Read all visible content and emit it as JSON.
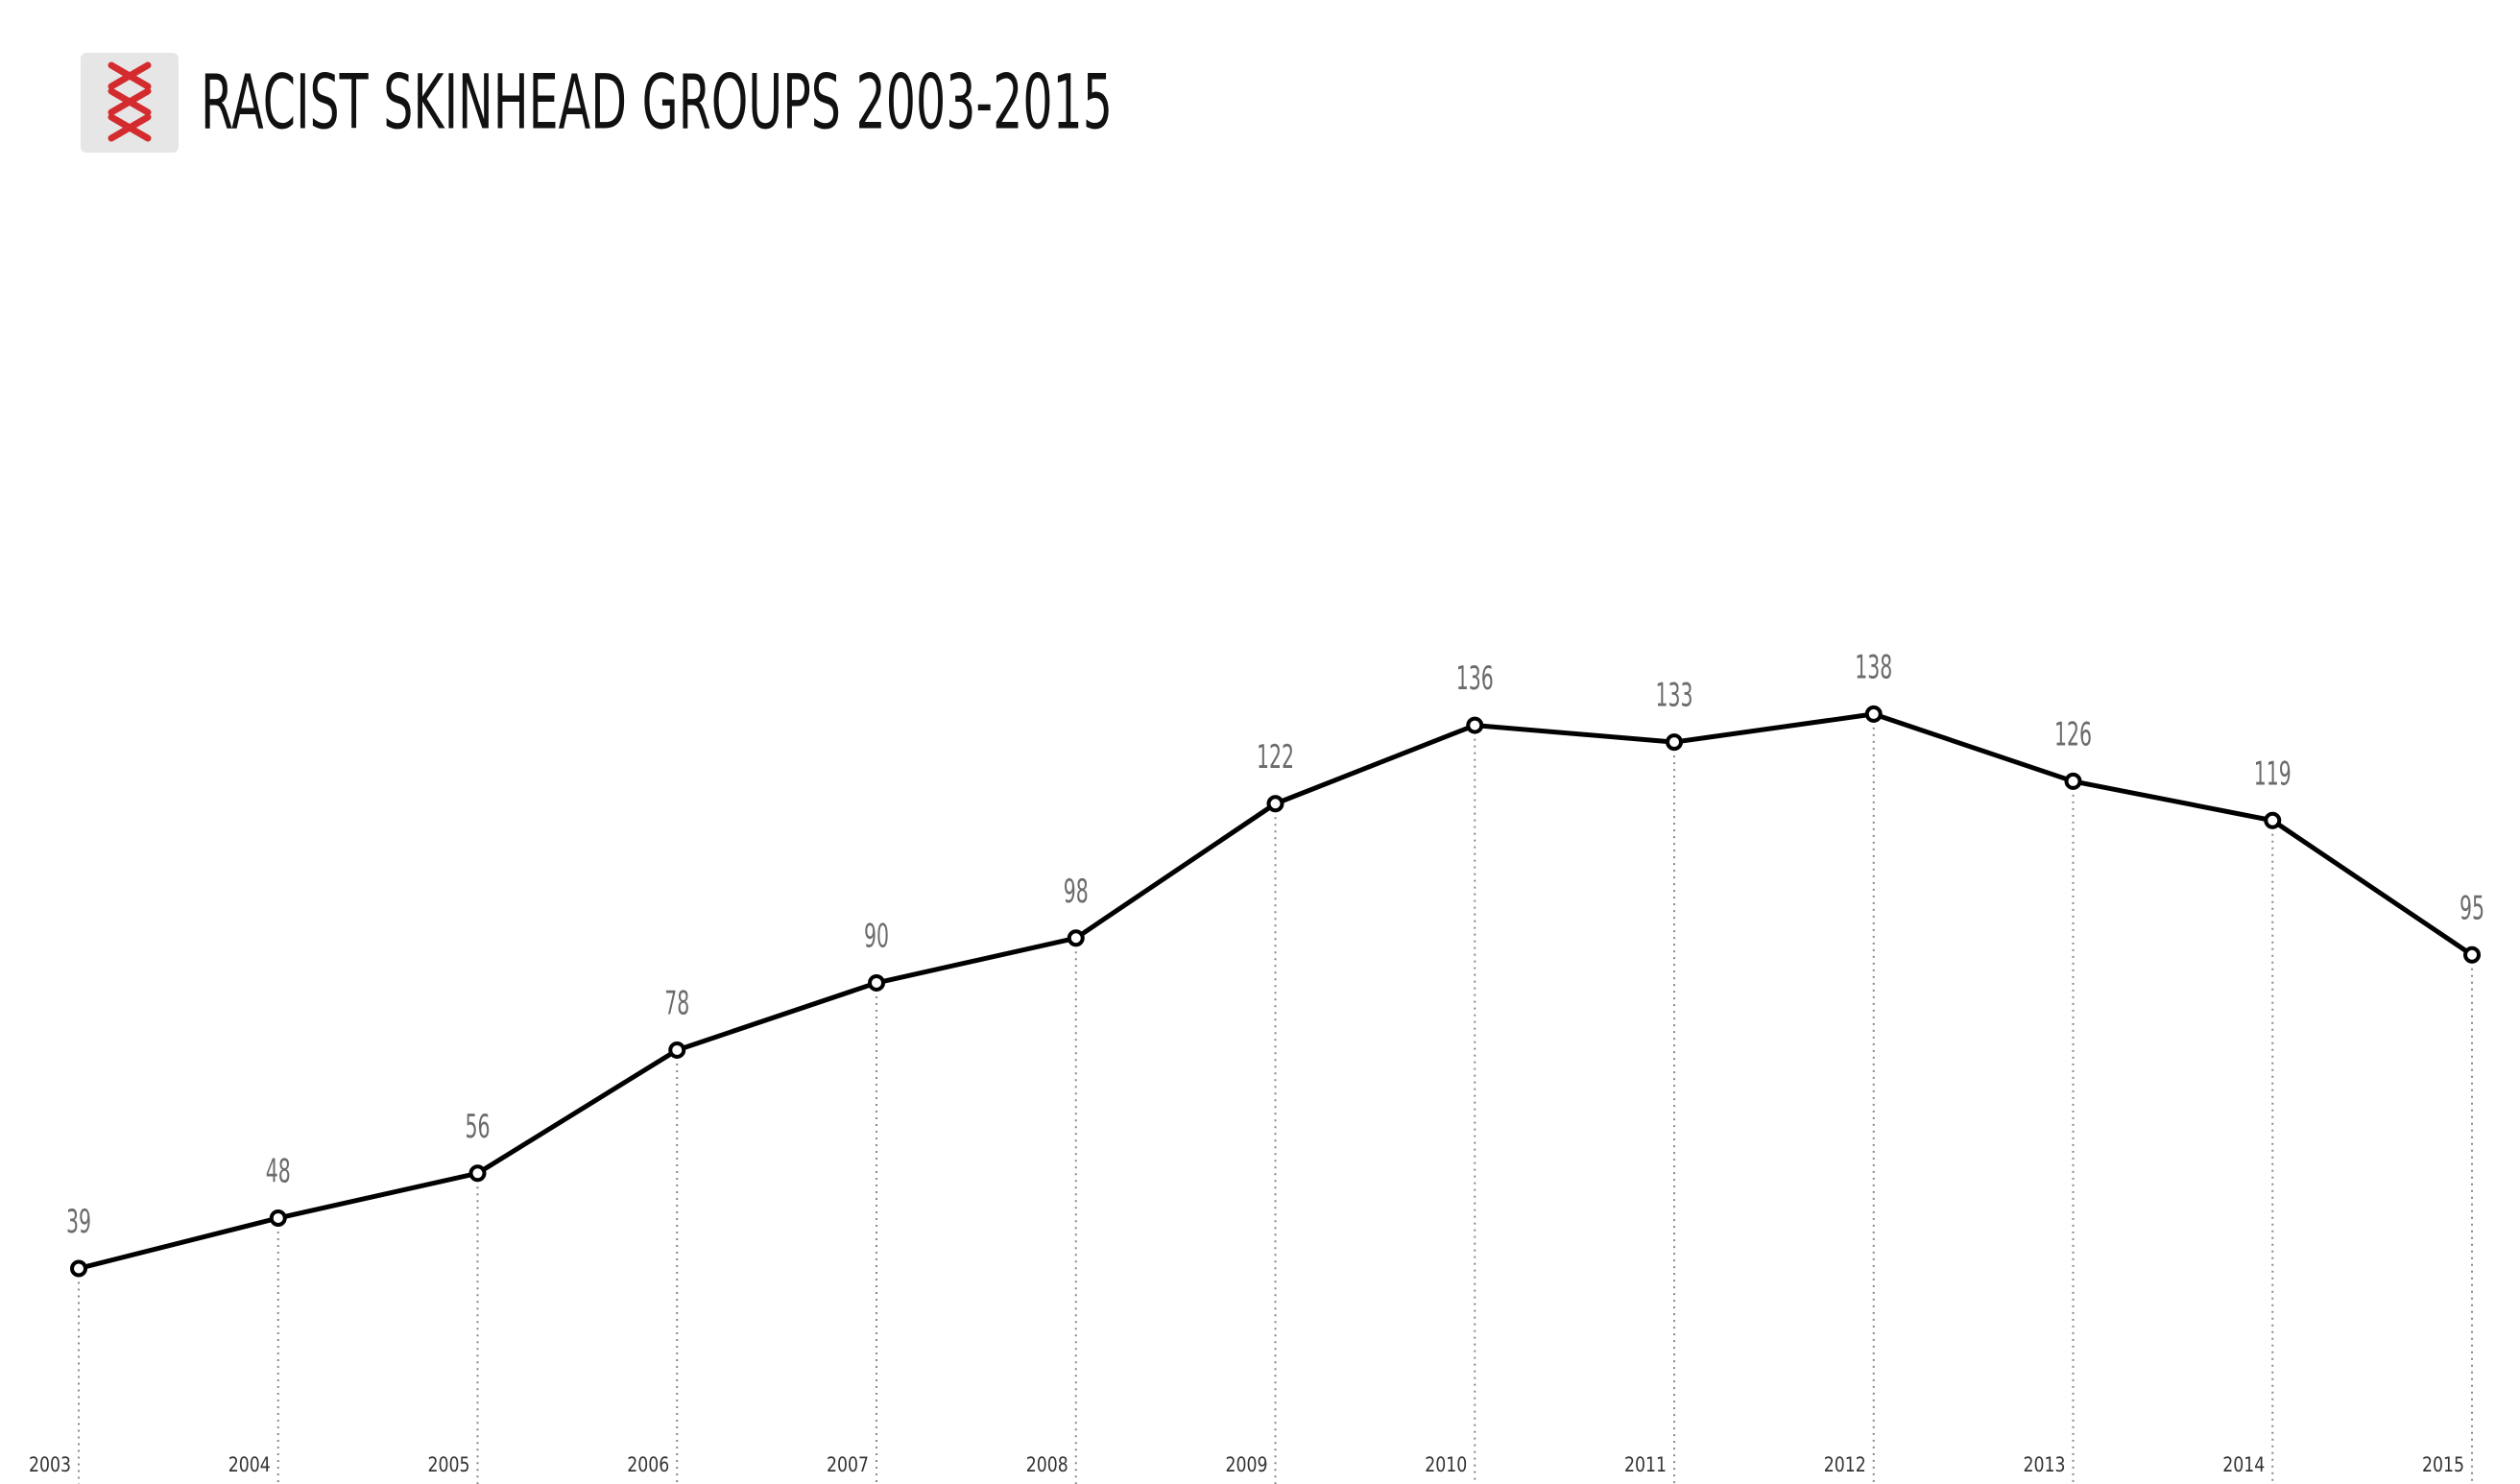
{
  "chart_data": {
    "type": "line",
    "title": "RACIST SKINHEAD GROUPS 2003-2015",
    "categories": [
      "2003",
      "2004",
      "2005",
      "2006",
      "2007",
      "2008",
      "2009",
      "2010",
      "2011",
      "2012",
      "2013",
      "2014",
      "2015"
    ],
    "values": [
      39,
      48,
      56,
      78,
      90,
      98,
      122,
      136,
      133,
      138,
      126,
      119,
      95
    ],
    "color": "#000000"
  }
}
